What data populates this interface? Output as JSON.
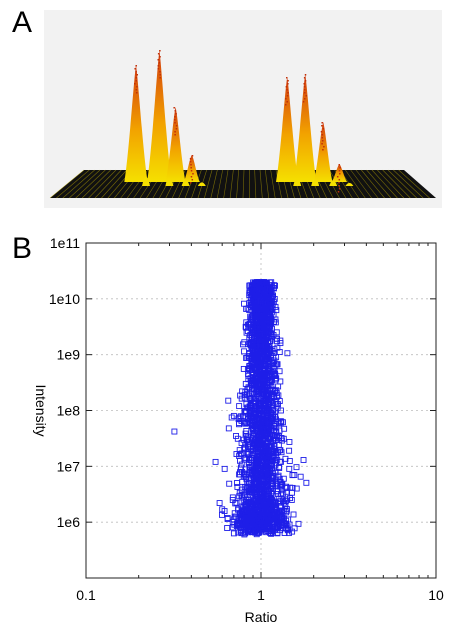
{
  "panels": {
    "a_label": "A",
    "b_label": "B"
  },
  "chart_data": [
    {
      "type": "area",
      "panel": "A",
      "description_free": true,
      "peaks": [
        {
          "pos": 0.2,
          "height": 0.78
        },
        {
          "pos": 0.265,
          "height": 0.88
        },
        {
          "pos": 0.31,
          "height": 0.5
        },
        {
          "pos": 0.355,
          "height": 0.18
        },
        {
          "pos": 0.62,
          "height": 0.7
        },
        {
          "pos": 0.67,
          "height": 0.72
        },
        {
          "pos": 0.72,
          "height": 0.4
        },
        {
          "pos": 0.765,
          "height": 0.12
        }
      ],
      "colors": {
        "background": "#f2f2f2",
        "base": "#111111",
        "low": "#f5e000",
        "high": "#d23a0e"
      }
    },
    {
      "type": "scatter",
      "panel": "B",
      "xlabel": "Ratio",
      "ylabel": "Intensity",
      "xscale": "log",
      "yscale": "log",
      "xlim": [
        0.1,
        10
      ],
      "ylim": [
        100000,
        100000000000
      ],
      "xticks": [
        {
          "v": 0.1,
          "label": "0.1"
        },
        {
          "v": 1,
          "label": "1"
        },
        {
          "v": 10,
          "label": "10"
        }
      ],
      "yticks": [
        {
          "v": 1000000,
          "label": "1e6"
        },
        {
          "v": 10000000,
          "label": "1e7"
        },
        {
          "v": 100000000,
          "label": "1e8"
        },
        {
          "v": 1000000000,
          "label": "1e9"
        },
        {
          "v": 10000000000,
          "label": "1e10"
        },
        {
          "v": 100000000000,
          "label": "1e11"
        }
      ],
      "grid": true,
      "marker": "square-open",
      "marker_color": "#1f1fe8",
      "core": {
        "x_center": 1.0,
        "n": 2600,
        "y_min": 600000,
        "y_max": 20000000000
      },
      "outliers": [
        {
          "x": 0.32,
          "y": 42000000
        },
        {
          "x": 0.55,
          "y": 12000000
        },
        {
          "x": 0.58,
          "y": 2200000
        },
        {
          "x": 0.6,
          "y": 1700000
        },
        {
          "x": 0.62,
          "y": 9000000
        },
        {
          "x": 0.65,
          "y": 150000000
        },
        {
          "x": 0.68,
          "y": 75000000
        },
        {
          "x": 0.7,
          "y": 80000000
        },
        {
          "x": 0.72,
          "y": 35000000
        },
        {
          "x": 0.75,
          "y": 120000000
        },
        {
          "x": 0.78,
          "y": 220000000
        },
        {
          "x": 0.8,
          "y": 1200000
        },
        {
          "x": 0.82,
          "y": 900000
        },
        {
          "x": 0.85,
          "y": 5000000
        },
        {
          "x": 1.15,
          "y": 1600000
        },
        {
          "x": 1.2,
          "y": 2200000
        },
        {
          "x": 1.22,
          "y": 900000000
        },
        {
          "x": 1.25,
          "y": 18000000
        },
        {
          "x": 1.3,
          "y": 12000000
        },
        {
          "x": 1.35,
          "y": 6000000
        },
        {
          "x": 1.4,
          "y": 3500000
        },
        {
          "x": 1.45,
          "y": 9000000
        },
        {
          "x": 1.5,
          "y": 2500000
        },
        {
          "x": 1.55,
          "y": 7000000
        },
        {
          "x": 1.6,
          "y": 4000000
        },
        {
          "x": 1.75,
          "y": 13000000
        },
        {
          "x": 1.3,
          "y": 100000000
        },
        {
          "x": 1.25,
          "y": 130000000
        }
      ]
    }
  ]
}
